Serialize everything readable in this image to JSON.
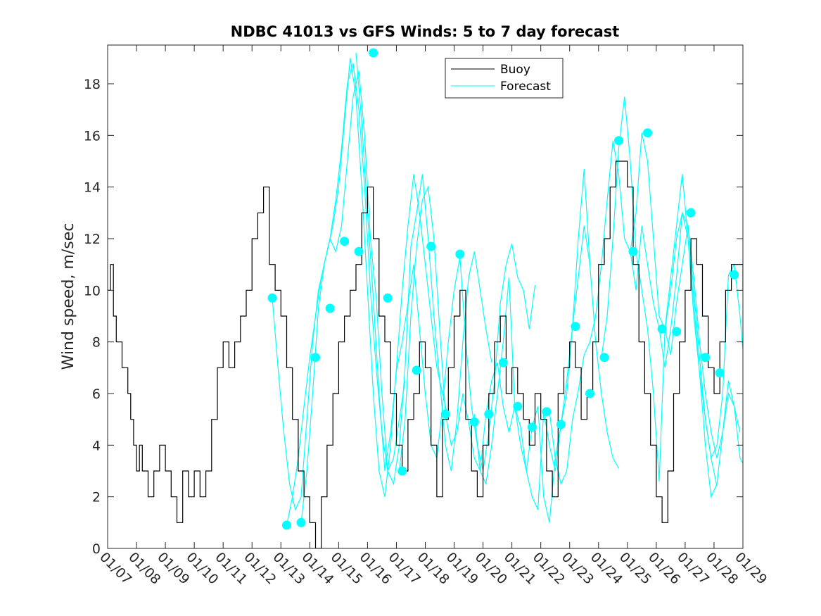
{
  "chart_data": {
    "type": "line",
    "title": "NDBC 41013 vs GFS Winds: 5 to 7 day forecast",
    "xlabel": "",
    "ylabel": "Wind speed, m/sec",
    "xlim": [
      0,
      22
    ],
    "ylim": [
      0,
      19.5
    ],
    "x_tick_labels": [
      "01/07",
      "01/08",
      "01/09",
      "01/10",
      "01/11",
      "01/12",
      "01/13",
      "01/14",
      "01/15",
      "01/16",
      "01/17",
      "01/18",
      "01/19",
      "01/20",
      "01/21",
      "01/22",
      "01/23",
      "01/24",
      "01/25",
      "01/26",
      "01/27",
      "01/28",
      "01/29"
    ],
    "y_ticks": [
      0,
      2,
      4,
      6,
      8,
      10,
      12,
      14,
      16,
      18
    ],
    "legend": {
      "position": "top-center",
      "entries": [
        "Buoy",
        "Forecast"
      ]
    },
    "colors": {
      "buoy": "#000000",
      "forecast": "#00ffff",
      "axes": "#262626"
    },
    "buoy": {
      "name": "Buoy",
      "x": [
        0,
        0.1,
        0.2,
        0.3,
        0.5,
        0.7,
        0.8,
        0.9,
        1.0,
        1.1,
        1.2,
        1.4,
        1.6,
        1.8,
        2.0,
        2.2,
        2.4,
        2.6,
        2.8,
        3.0,
        3.2,
        3.4,
        3.6,
        3.8,
        4.0,
        4.2,
        4.4,
        4.6,
        4.8,
        5.0,
        5.2,
        5.4,
        5.6,
        5.8,
        6.0,
        6.2,
        6.4,
        6.6,
        6.8,
        7.0,
        7.2,
        7.4,
        7.6,
        7.8,
        8.0,
        8.2,
        8.4,
        8.6,
        8.8,
        9.0,
        9.2,
        9.4,
        9.6,
        9.8,
        10.0,
        10.2,
        10.4,
        10.6,
        10.8,
        11.0,
        11.2,
        11.4,
        11.6,
        11.8,
        12.0,
        12.2,
        12.4,
        12.6,
        12.8,
        13.0,
        13.2,
        13.4,
        13.6,
        13.8,
        14.0,
        14.2,
        14.4,
        14.6,
        14.8,
        15.0,
        15.2,
        15.4,
        15.6,
        15.8,
        16.0,
        16.2,
        16.4,
        16.6,
        16.8,
        17.0,
        17.2,
        17.4,
        17.6,
        17.8,
        18.0,
        18.2,
        18.4,
        18.6,
        18.8,
        19.0,
        19.2,
        19.4,
        19.6,
        19.8,
        20.0,
        20.2,
        20.4,
        20.6,
        20.8,
        21.0,
        21.2,
        21.4,
        21.6,
        21.8,
        22.0
      ],
      "values": [
        10,
        11,
        9,
        8,
        7,
        6,
        5,
        4,
        3,
        4,
        3,
        2,
        3,
        4,
        3,
        2,
        1,
        3,
        2,
        3,
        2,
        3,
        5,
        7,
        8,
        7,
        8,
        9,
        10,
        12,
        13,
        14,
        11,
        10,
        9,
        7,
        5,
        3,
        2,
        1,
        0,
        2,
        4,
        6,
        8,
        9,
        10,
        11,
        13,
        14,
        12,
        9,
        8,
        6,
        4,
        3,
        5,
        6,
        8,
        7,
        4,
        2,
        5,
        7,
        9,
        10,
        5,
        3,
        2,
        4,
        6,
        8,
        9,
        6,
        7,
        6,
        5,
        4,
        6,
        5,
        3,
        2,
        6,
        7,
        8,
        7,
        5,
        6,
        8,
        11,
        12,
        14,
        15,
        15,
        14,
        11,
        8,
        6,
        4,
        2,
        1,
        3,
        6,
        8,
        10,
        12,
        11,
        9,
        7,
        6,
        8,
        10,
        11,
        11,
        10
      ]
    },
    "forecast_series": [
      {
        "name": "Forecast",
        "x": [
          5.7,
          5.9,
          6.1,
          6.3,
          6.5,
          6.7,
          6.9,
          7.1,
          7.3,
          7.5,
          7.7,
          7.9,
          8.1,
          8.3,
          8.5,
          8.7,
          8.9,
          9.1,
          9.3,
          9.5,
          9.7,
          9.9,
          10.1,
          10.3
        ],
        "values": [
          9.7,
          7.0,
          4.5,
          2.5,
          1.5,
          2.0,
          5.0,
          8.0,
          10.0,
          11.0,
          12.0,
          13.5,
          15.5,
          18.0,
          18.8,
          17.0,
          14.0,
          10.0,
          7.0,
          4.5,
          3.0,
          3.5,
          5.0,
          6.5
        ]
      },
      {
        "name": "Forecast",
        "x": [
          6.2,
          6.4,
          6.6,
          6.8,
          7.0,
          7.2,
          7.4,
          7.6,
          7.8,
          8.0,
          8.2,
          8.4,
          8.6,
          8.8,
          9.0,
          9.2,
          9.4,
          9.6,
          9.8,
          10.0,
          10.2,
          10.4,
          10.6,
          10.8,
          11.0,
          11.2,
          11.4,
          11.6,
          11.8
        ],
        "values": [
          0.9,
          2.0,
          3.5,
          5.5,
          7.4,
          9.0,
          10.5,
          11.5,
          12.5,
          14.0,
          16.5,
          19.0,
          17.5,
          14.0,
          10.0,
          6.0,
          3.0,
          2.0,
          4.0,
          7.0,
          10.0,
          12.5,
          14.5,
          13.0,
          11.0,
          9.0,
          7.0,
          6.0,
          5.0
        ]
      },
      {
        "name": "Forecast",
        "x": [
          6.7,
          6.9,
          7.1,
          7.3,
          7.5,
          7.7,
          7.9,
          8.1,
          8.3,
          8.5,
          8.7,
          8.9,
          9.1,
          9.3,
          9.5,
          9.7,
          9.9,
          10.1,
          10.3,
          10.5,
          10.7,
          10.9,
          11.1,
          11.3,
          11.5,
          11.7,
          11.9,
          12.1,
          12.3,
          12.5,
          12.7,
          12.9,
          13.1,
          13.3
        ],
        "values": [
          1.0,
          3.0,
          6.0,
          9.3,
          11.0,
          12.0,
          11.5,
          12.5,
          15.0,
          17.5,
          18.5,
          16.0,
          12.0,
          9.7,
          6.0,
          3.0,
          2.5,
          4.0,
          7.0,
          11.7,
          13.0,
          14.5,
          12.0,
          9.0,
          6.5,
          4.0,
          3.0,
          5.0,
          8.0,
          10.5,
          11.5,
          10.0,
          8.5,
          7.2
        ]
      },
      {
        "name": "Forecast",
        "x": [
          8.6,
          8.8,
          9.0,
          9.2,
          9.4,
          9.6,
          9.8,
          10.0,
          10.2,
          10.4,
          10.6,
          10.8,
          11.0,
          11.2,
          11.4,
          11.6,
          11.8,
          12.0,
          12.2,
          12.4,
          12.6,
          12.8,
          13.0,
          13.2,
          13.4,
          13.6,
          13.8,
          14.0,
          14.2,
          14.4,
          14.6,
          14.8
        ],
        "values": [
          19.2,
          16.5,
          13.0,
          9.7,
          6.0,
          3.0,
          4.5,
          6.9,
          8.0,
          9.5,
          11.0,
          8.5,
          6.0,
          4.0,
          3.5,
          5.5,
          8.0,
          10.0,
          11.3,
          8.0,
          5.5,
          4.0,
          3.0,
          4.5,
          6.5,
          9.5,
          11.0,
          11.8,
          10.5,
          10.0,
          8.5,
          10.2
        ]
      },
      {
        "name": "Forecast",
        "x": [
          10.1,
          10.3,
          10.5,
          10.7,
          10.9,
          11.1,
          11.3,
          11.5,
          11.7,
          11.9,
          12.1,
          12.3,
          12.5,
          12.7,
          12.9,
          13.1,
          13.3,
          13.5,
          13.7,
          13.9,
          14.1,
          14.3,
          14.5,
          14.7,
          14.9,
          15.1,
          15.3,
          15.5,
          15.7,
          15.9,
          16.1,
          16.3,
          16.5,
          16.7
        ],
        "values": [
          3.0,
          5.0,
          9.0,
          11.7,
          13.5,
          14.0,
          12.0,
          8.5,
          5.2,
          4.0,
          4.5,
          6.0,
          4.9,
          3.5,
          3.0,
          5.2,
          6.5,
          7.2,
          5.5,
          4.5,
          5.5,
          4.7,
          3.0,
          2.0,
          1.5,
          5.3,
          4.0,
          3.0,
          4.8,
          6.0,
          8.6,
          12.0,
          14.7,
          11.0
        ]
      },
      {
        "name": "Forecast",
        "x": [
          12.7,
          12.9,
          13.1,
          13.3,
          13.5,
          13.7,
          13.9,
          14.1,
          14.3,
          14.5,
          14.7,
          14.9,
          15.1,
          15.3,
          15.5,
          15.7,
          15.9,
          16.1,
          16.3,
          16.5,
          16.7,
          16.9,
          17.1,
          17.3,
          17.5,
          17.7
        ],
        "values": [
          5.2,
          3.0,
          2.5,
          4.0,
          6.0,
          8.0,
          10.5,
          5.5,
          4.0,
          3.0,
          4.7,
          5.5,
          2.0,
          1.0,
          3.5,
          4.8,
          6.5,
          8.6,
          10.5,
          12.5,
          11.0,
          8.0,
          6.0,
          4.5,
          3.5,
          3.1
        ]
      },
      {
        "name": "Forecast",
        "x": [
          15.3,
          15.5,
          15.7,
          15.9,
          16.1,
          16.3,
          16.5,
          16.7,
          16.9,
          17.1,
          17.3,
          17.5,
          17.7,
          17.9,
          18.1,
          18.3,
          18.5,
          18.7,
          18.9,
          19.1,
          19.3,
          19.5,
          19.7,
          19.9,
          20.1,
          20.3,
          20.5,
          20.7,
          20.9,
          21.1
        ],
        "values": [
          5.3,
          3.5,
          2.5,
          3.0,
          5.0,
          6.1,
          7.5,
          8.0,
          9.0,
          11.0,
          13.5,
          15.8,
          14.5,
          12.0,
          11.5,
          13.0,
          16.1,
          15.0,
          12.0,
          9.0,
          8.5,
          10.0,
          12.0,
          13.0,
          12.5,
          10.0,
          7.4,
          5.0,
          3.5,
          2.4
        ]
      },
      {
        "name": "Forecast",
        "x": [
          17.1,
          17.3,
          17.5,
          17.7,
          17.9,
          18.1,
          18.3,
          18.5,
          18.7,
          18.9,
          19.1,
          19.3,
          19.5,
          19.7,
          19.9,
          20.1,
          20.3,
          20.5,
          20.7,
          20.9,
          21.1,
          21.3,
          21.5,
          21.7,
          21.9
        ],
        "values": [
          7.4,
          9.0,
          12.0,
          15.5,
          17.5,
          15.0,
          11.5,
          10.0,
          8.5,
          6.0,
          2.6,
          8.5,
          10.5,
          12.5,
          14.5,
          12.0,
          9.0,
          6.8,
          4.0,
          2.0,
          2.5,
          4.5,
          6.0,
          5.5,
          4.5
        ]
      },
      {
        "name": "Forecast",
        "x": [
          18.1,
          18.3,
          18.5,
          18.7,
          18.9,
          19.1,
          19.3,
          19.5,
          19.7,
          19.9,
          20.1,
          20.3,
          20.5,
          20.7,
          20.9,
          21.1,
          21.3,
          21.5,
          21.7,
          21.9,
          22.0
        ],
        "values": [
          11.5,
          10.0,
          12.5,
          11.0,
          9.5,
          8.5,
          7.0,
          8.5,
          10.5,
          13.0,
          12.0,
          9.5,
          6.8,
          5.0,
          3.5,
          4.0,
          6.0,
          10.6,
          11.0,
          9.0,
          7.7
        ]
      },
      {
        "name": "Forecast",
        "x": [
          19.3,
          19.5,
          19.7,
          19.9,
          20.1,
          20.3,
          20.5,
          20.7,
          20.9,
          21.1,
          21.3,
          21.5,
          21.7,
          21.9,
          22.0
        ],
        "values": [
          8.5,
          7.5,
          9.5,
          11.0,
          12.5,
          10.5,
          8.0,
          6.0,
          4.5,
          3.5,
          4.5,
          6.5,
          5.5,
          3.5,
          3.3
        ]
      }
    ],
    "forecast_markers": {
      "x": [
        5.7,
        6.2,
        6.7,
        7.2,
        7.7,
        8.2,
        8.7,
        9.2,
        9.7,
        10.2,
        10.7,
        11.2,
        11.7,
        12.2,
        12.7,
        13.2,
        13.7,
        14.2,
        14.7,
        15.2,
        15.7,
        16.2,
        16.7,
        17.2,
        17.7,
        18.2,
        18.7,
        19.2,
        19.7,
        20.2,
        20.7,
        21.2,
        21.7
      ],
      "values": [
        9.7,
        0.9,
        1.0,
        7.4,
        9.3,
        11.9,
        11.5,
        19.2,
        9.7,
        3.0,
        6.9,
        11.7,
        5.2,
        11.4,
        4.9,
        5.2,
        7.2,
        5.5,
        4.7,
        5.3,
        4.8,
        8.6,
        6.0,
        7.4,
        15.8,
        11.5,
        16.1,
        8.5,
        8.4,
        13.0,
        7.4,
        6.8,
        10.6
      ]
    }
  }
}
